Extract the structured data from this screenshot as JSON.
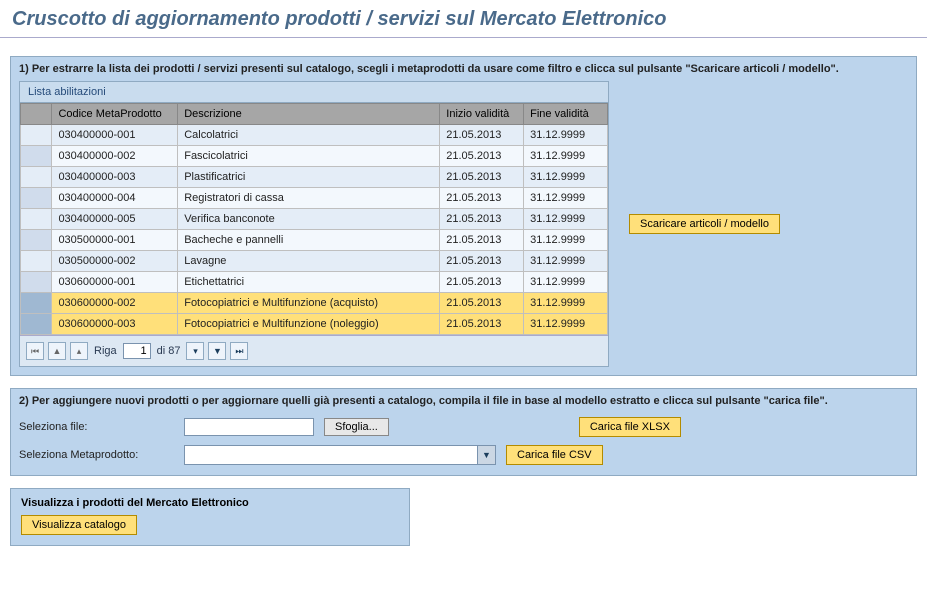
{
  "colors": {
    "panel_bg": "#bcd4ec",
    "highlight": "#ffe07a",
    "header_gray": "#a6a6a6"
  },
  "title": "Cruscotto di aggiornamento prodotti / servizi sul Mercato Elettronico",
  "section1": {
    "heading": "1) Per estrarre la lista dei prodotti / servizi presenti sul catalogo, scegli i metaprodotti da usare come filtro e clicca sul pulsante \"Scaricare articoli / modello\".",
    "table_caption": "Lista abilitazioni",
    "columns": {
      "code": "Codice MetaProdotto",
      "desc": "Descrizione",
      "start": "Inizio validità",
      "end": "Fine validità"
    },
    "rows": [
      {
        "code": "030400000-001",
        "desc": "Calcolatrici",
        "start": "21.05.2013",
        "end": "31.12.9999",
        "selected": false
      },
      {
        "code": "030400000-002",
        "desc": "Fascicolatrici",
        "start": "21.05.2013",
        "end": "31.12.9999",
        "selected": false
      },
      {
        "code": "030400000-003",
        "desc": "Plastificatrici",
        "start": "21.05.2013",
        "end": "31.12.9999",
        "selected": false
      },
      {
        "code": "030400000-004",
        "desc": "Registratori di cassa",
        "start": "21.05.2013",
        "end": "31.12.9999",
        "selected": false
      },
      {
        "code": "030400000-005",
        "desc": "Verifica banconote",
        "start": "21.05.2013",
        "end": "31.12.9999",
        "selected": false
      },
      {
        "code": "030500000-001",
        "desc": "Bacheche e pannelli",
        "start": "21.05.2013",
        "end": "31.12.9999",
        "selected": false
      },
      {
        "code": "030500000-002",
        "desc": "Lavagne",
        "start": "21.05.2013",
        "end": "31.12.9999",
        "selected": false
      },
      {
        "code": "030600000-001",
        "desc": "Etichettatrici",
        "start": "21.05.2013",
        "end": "31.12.9999",
        "selected": false
      },
      {
        "code": "030600000-002",
        "desc": "Fotocopiatrici e Multifunzione (acquisto)",
        "start": "21.05.2013",
        "end": "31.12.9999",
        "selected": true
      },
      {
        "code": "030600000-003",
        "desc": "Fotocopiatrici e Multifunzione (noleggio)",
        "start": "21.05.2013",
        "end": "31.12.9999",
        "selected": true
      }
    ],
    "pager": {
      "label_row": "Riga",
      "current": "1",
      "label_of": "di 87"
    },
    "download_btn": "Scaricare articoli / modello"
  },
  "section2": {
    "heading": "2) Per aggiungere nuovi prodotti o per aggiornare quelli già presenti a catalogo, compila il file in base al modello estratto e clicca sul pulsante \"carica file\".",
    "file_label": "Seleziona file:",
    "browse_label": "Sfoglia...",
    "upload_xlsx_btn": "Carica file XLSX",
    "meta_label": "Seleziona Metaprodotto:",
    "meta_selected": "",
    "upload_csv_btn": "Carica file CSV"
  },
  "section3": {
    "title": "Visualizza i prodotti del Mercato Elettronico",
    "view_btn": "Visualizza catalogo"
  }
}
